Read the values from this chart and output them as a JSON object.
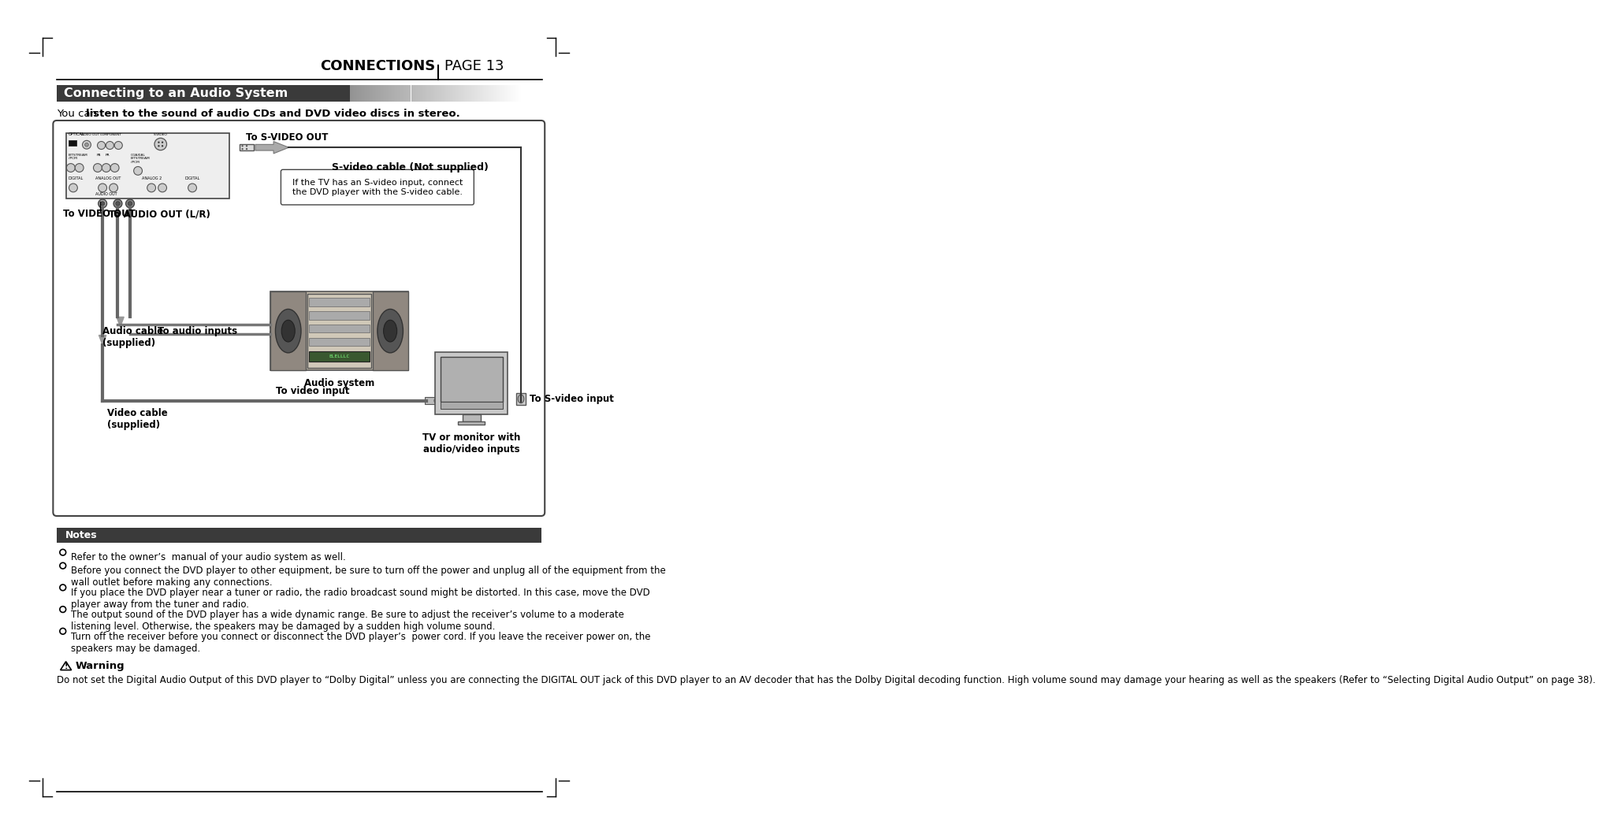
{
  "page_title": "CONNECTIONS",
  "page_number": "PAGE 13",
  "section_title": "Connecting to an Audio System",
  "intro_text_normal": "You can ",
  "intro_text_bold": "listen to the sound of audio CDs and DVD video discs in stereo.",
  "notes_header": "Notes",
  "notes": [
    "Refer to the owner’s  manual of your audio system as well.",
    "Before you connect the DVD player to other equipment, be sure to turn off the power and unplug all of the equipment from the wall outlet before making any connections.",
    "If you place the DVD player near a tuner or radio, the radio broadcast sound might be distorted. In this case, move the DVD player away from the tuner and radio.",
    "The output sound of the DVD player has a wide dynamic range. Be sure to adjust the receiver’s volume to a moderate listening level. Otherwise, the speakers may be damaged by a sudden high volume sound.",
    "Turn off the receiver before you connect or disconnect the DVD player’s  power cord. If you leave the receiver power on, the speakers may be damaged."
  ],
  "warning_header": "Warning",
  "warning_text": "Do not set the Digital Audio Output of this DVD player to “Dolby Digital” unless you are connecting the DIGITAL OUT jack of this DVD player to an AV decoder that has the Dolby Digital decoding function. High volume sound may damage your hearing as well as the speakers (Refer to “Selecting Digital Audio Output” on page 38).",
  "bg_color": "#ffffff",
  "section_title_bg": "#3a3a3a",
  "section_title_color": "#ffffff",
  "notes_bg": "#3a3a3a",
  "notes_color": "#ffffff"
}
